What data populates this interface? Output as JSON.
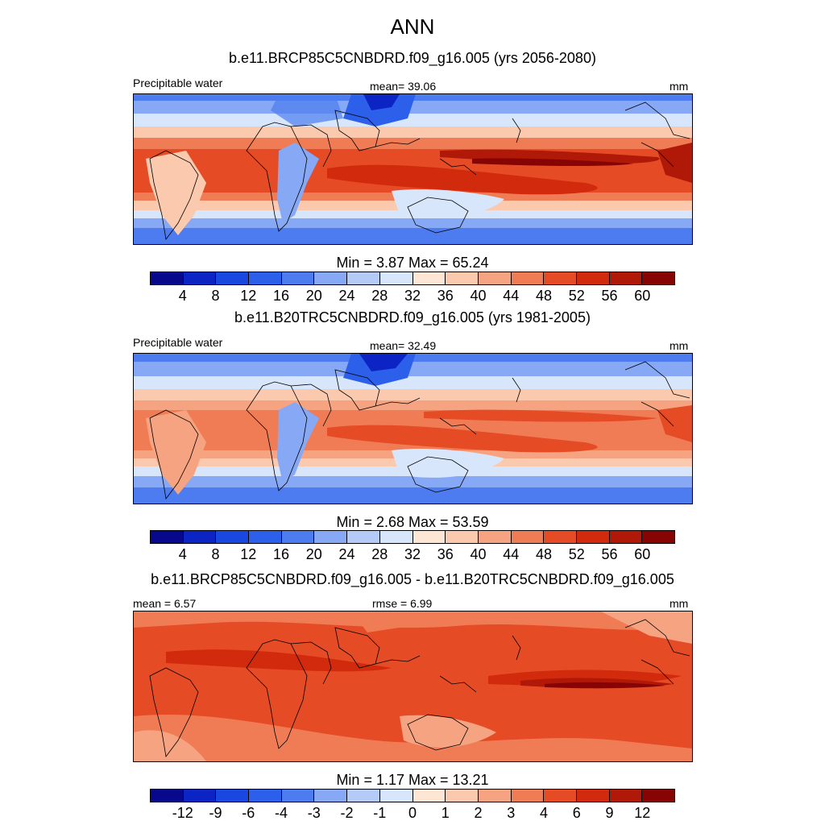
{
  "title": "ANN",
  "colors": {
    "abs_palette": [
      "#08088c",
      "#0c24c4",
      "#1848e0",
      "#2c60ea",
      "#4c7cf0",
      "#86a8f5",
      "#b4cbf8",
      "#d8e6fb",
      "#fde6d4",
      "#fbc9ae",
      "#f6a382",
      "#f07c55",
      "#e54b25",
      "#d22a0c",
      "#b01808",
      "#860404"
    ],
    "diff_palette": [
      "#08088c",
      "#0c24c4",
      "#1848e0",
      "#2c60ea",
      "#4c7cf0",
      "#86a8f5",
      "#b4cbf8",
      "#d8e6fb",
      "#fde6d4",
      "#fbc9ae",
      "#f6a382",
      "#f07c55",
      "#e54b25",
      "#d22a0c",
      "#b01808",
      "#860404"
    ]
  },
  "panels": [
    {
      "title": "b.e11.BRCP85C5CNBDRD.f09_g16.005 (yrs 2056-2080)",
      "left_label": "Precipitable water",
      "center_label": "mean=  39.06",
      "right_label": "mm",
      "minmax": "Min =   3.87 Max =  65.24",
      "colorbar_ticks": [
        "4",
        "8",
        "12",
        "16",
        "20",
        "24",
        "28",
        "32",
        "36",
        "40",
        "44",
        "48",
        "52",
        "56",
        "60"
      ]
    },
    {
      "title": "b.e11.B20TRC5CNBDRD.f09_g16.005 (yrs 1981-2005)",
      "left_label": "Precipitable water",
      "center_label": "mean=  32.49",
      "right_label": "mm",
      "minmax": "Min =   2.68 Max =  53.59",
      "colorbar_ticks": [
        "4",
        "8",
        "12",
        "16",
        "20",
        "24",
        "28",
        "32",
        "36",
        "40",
        "44",
        "48",
        "52",
        "56",
        "60"
      ]
    },
    {
      "title": "b.e11.BRCP85C5CNBDRD.f09_g16.005 - b.e11.B20TRC5CNBDRD.f09_g16.005",
      "left_label": "mean =   6.57",
      "center_label": "rmse =   6.99",
      "right_label": "mm",
      "minmax": "Min =   1.17 Max =  13.21",
      "colorbar_ticks": [
        "-12",
        "-9",
        "-6",
        "-4",
        "-3",
        "-2",
        "-1",
        "0",
        "1",
        "2",
        "3",
        "4",
        "6",
        "9",
        "12"
      ]
    }
  ]
}
